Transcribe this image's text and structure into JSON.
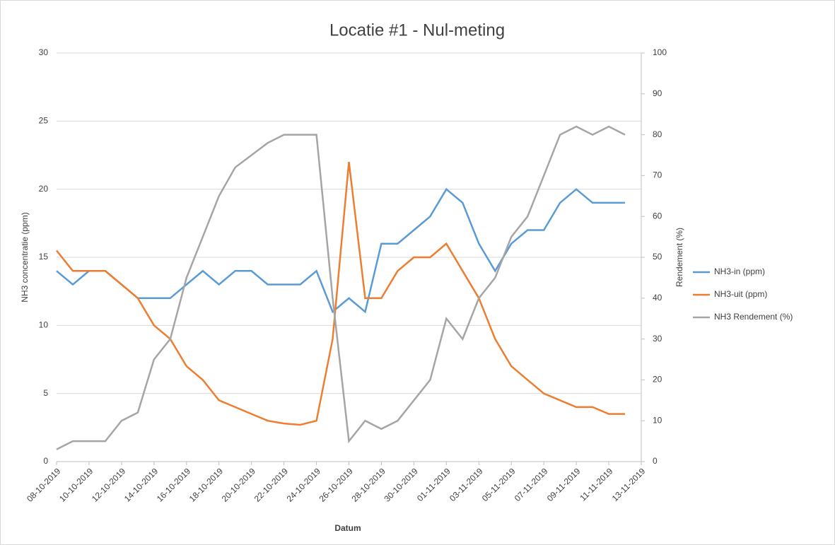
{
  "chart_data": {
    "type": "line",
    "title": "Locatie #1 - Nul-meting",
    "x_label": "Datum",
    "y_label": "NH3 concentratie (ppm)",
    "y2_label": "Rendement (%)",
    "x": [
      "08-10-2019",
      "09-10-2019",
      "10-10-2019",
      "11-10-2019",
      "12-10-2019",
      "13-10-2019",
      "14-10-2019",
      "15-10-2019",
      "16-10-2019",
      "17-10-2019",
      "18-10-2019",
      "19-10-2019",
      "20-10-2019",
      "21-10-2019",
      "22-10-2019",
      "23-10-2019",
      "24-10-2019",
      "25-10-2019",
      "26-10-2019",
      "27-10-2019",
      "28-10-2019",
      "29-10-2019",
      "30-10-2019",
      "31-10-2019",
      "01-11-2019",
      "02-11-2019",
      "03-11-2019",
      "04-11-2019",
      "05-11-2019",
      "06-11-2019",
      "07-11-2019",
      "08-11-2019",
      "09-11-2019",
      "10-11-2019",
      "11-11-2019",
      "12-11-2019"
    ],
    "series": [
      {
        "name": "NH3-in (ppm)",
        "color": "#5b9bd5",
        "values": [
          14,
          13,
          14,
          14,
          13,
          12,
          12,
          12,
          13,
          14,
          13,
          14,
          14,
          13,
          13,
          13,
          14,
          11,
          12,
          11,
          16,
          16,
          17,
          18,
          20,
          19,
          16,
          14,
          16,
          17,
          17,
          19,
          20,
          19,
          19,
          19
        ]
      },
      {
        "name": "NH3-uit (ppm)",
        "color": "#ed7d31",
        "values": [
          15.5,
          14,
          14,
          14,
          13,
          12,
          10,
          9,
          7,
          6,
          4.5,
          4,
          3.5,
          3,
          2.8,
          2.7,
          3,
          9,
          22,
          12,
          12,
          14,
          15,
          15,
          16,
          14,
          12,
          9,
          7,
          6,
          5,
          4.5,
          4,
          4,
          3.5,
          3.5
        ]
      },
      {
        "name": "NH3 Rendement (%)",
        "color": "#a5a5a5",
        "axis": "y2",
        "values": [
          3,
          5,
          5,
          5,
          10,
          12,
          25,
          30,
          45,
          55,
          65,
          72,
          75,
          78,
          80,
          80,
          80,
          40,
          5,
          10,
          8,
          10,
          15,
          20,
          35,
          30,
          40,
          45,
          55,
          60,
          70,
          80,
          82,
          80,
          82,
          80
        ]
      }
    ],
    "xlim": [
      "08-10-2019",
      "13-11-2019"
    ],
    "xticks": [
      "08-10-2019",
      "10-10-2019",
      "12-10-2019",
      "14-10-2019",
      "16-10-2019",
      "18-10-2019",
      "20-10-2019",
      "22-10-2019",
      "24-10-2019",
      "26-10-2019",
      "28-10-2019",
      "30-10-2019",
      "01-11-2019",
      "03-11-2019",
      "05-11-2019",
      "07-11-2019",
      "09-11-2019",
      "11-11-2019",
      "13-11-2019"
    ],
    "ylim": [
      0,
      30
    ],
    "yticks": [
      0,
      5,
      10,
      15,
      20,
      25,
      30
    ],
    "y2lim": [
      0,
      100
    ],
    "y2ticks": [
      0,
      10,
      20,
      30,
      40,
      50,
      60,
      70,
      80,
      90,
      100
    ],
    "grid": true,
    "legend": "right"
  }
}
